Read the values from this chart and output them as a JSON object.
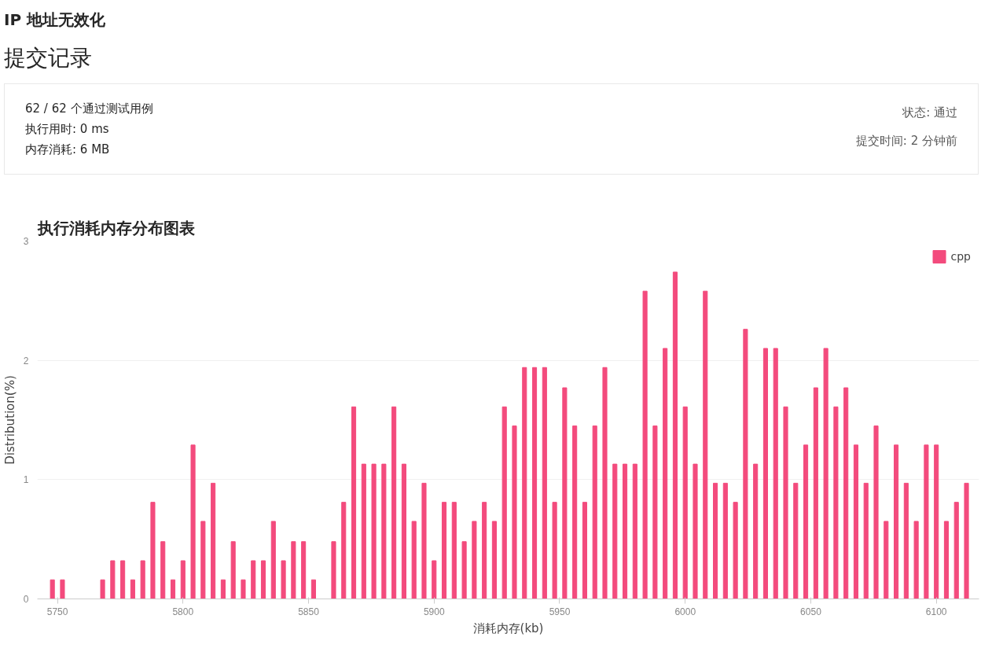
{
  "chart_data": [
    {
      "type": "other",
      "title": "IP 地址无效化",
      "subtitle": "提交记录",
      "annotations": [
        "62 / 62 个通过测试用例",
        "执行用时: 0 ms",
        "内存消耗: 6 MB",
        "状态: 通过",
        "提交时间: 2 分钟前"
      ]
    },
    {
      "type": "bar",
      "title": "执行消耗内存分布图表",
      "xlabel": "消耗内存(kb)",
      "ylabel": "Distribution(%)",
      "x": [
        5748,
        5752,
        5756,
        5760,
        5764,
        5768,
        5772,
        5776,
        5780,
        5784,
        5788,
        5792,
        5796,
        5800,
        5804,
        5808,
        5812,
        5816,
        5820,
        5824,
        5828,
        5832,
        5836,
        5840,
        5844,
        5848,
        5852,
        5856,
        5860,
        5864,
        5868,
        5872,
        5876,
        5880,
        5884,
        5888,
        5892,
        5896,
        5900,
        5904,
        5908,
        5912,
        5916,
        5920,
        5924,
        5928,
        5932,
        5936,
        5940,
        5944,
        5948,
        5952,
        5956,
        5960,
        5964,
        5968,
        5972,
        5976,
        5980,
        5984,
        5988,
        5992,
        5996,
        6000,
        6004,
        6008,
        6012,
        6016,
        6020,
        6024,
        6028,
        6032,
        6036,
        6040,
        6044,
        6048,
        6052,
        6056,
        6060,
        6064,
        6068,
        6072,
        6076,
        6080,
        6084,
        6088,
        6092,
        6096,
        6100,
        6104,
        6108,
        6112
      ],
      "series": [
        {
          "name": "cpp",
          "color": "#f34b7d",
          "values": [
            0.16,
            0.16,
            0,
            0,
            0,
            0.16,
            0.32,
            0.32,
            0.16,
            0.32,
            0.81,
            0.48,
            0.16,
            0.32,
            1.29,
            0.65,
            0.97,
            0.16,
            0.48,
            0.16,
            0.32,
            0.32,
            0.65,
            0.32,
            0.48,
            0.48,
            0.16,
            0,
            0.48,
            0.81,
            1.61,
            1.13,
            1.13,
            1.13,
            1.61,
            1.13,
            0.65,
            0.97,
            0.32,
            0.81,
            0.81,
            0.48,
            0.65,
            0.81,
            0.65,
            1.61,
            1.45,
            1.94,
            1.94,
            1.94,
            0.81,
            1.77,
            1.45,
            0.81,
            1.45,
            1.94,
            1.13,
            1.13,
            1.13,
            2.58,
            1.45,
            2.1,
            2.74,
            1.61,
            1.13,
            2.58,
            0.97,
            0.97,
            0.81,
            2.26,
            1.13,
            2.1,
            2.1,
            1.61,
            0.97,
            1.29,
            1.77,
            2.1,
            1.61,
            1.77,
            1.29,
            0.97,
            1.45,
            0.65,
            1.29,
            0.97,
            0.65,
            1.29,
            1.29,
            0.65,
            0.81,
            0.97
          ]
        }
      ],
      "xlim": [
        5742,
        6117
      ],
      "ylim": [
        0,
        3
      ],
      "xticks": [
        5750,
        5800,
        5850,
        5900,
        5950,
        6000,
        6050,
        6100
      ],
      "yticks": [
        0,
        1,
        2,
        3
      ],
      "grid": "y",
      "legend": "top right"
    }
  ]
}
